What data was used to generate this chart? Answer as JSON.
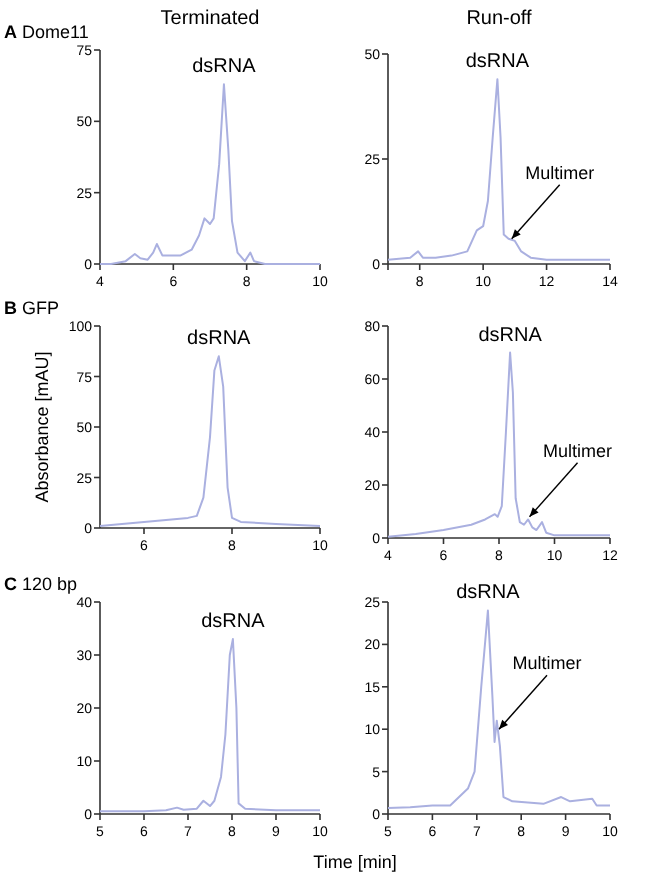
{
  "chart_data": [
    {
      "type": "line",
      "title": "Terminated",
      "subtitle": "A Dome11",
      "xlim": [
        4,
        10
      ],
      "xticks": [
        4,
        6,
        8,
        10
      ],
      "ylim": [
        0,
        75
      ],
      "yticks": [
        0,
        25,
        50,
        75
      ],
      "series": [
        {
          "color": "#aab0e0",
          "x": [
            4,
            4.3,
            4.7,
            4.95,
            5.1,
            5.3,
            5.45,
            5.55,
            5.7,
            5.9,
            6.2,
            6.5,
            6.7,
            6.85,
            7.0,
            7.1,
            7.25,
            7.38,
            7.5,
            7.6,
            7.75,
            7.95,
            8.1,
            8.2,
            8.5,
            9,
            10
          ],
          "values": [
            0,
            0,
            1,
            3.5,
            2,
            1.5,
            4,
            7,
            3,
            3,
            3,
            5,
            10,
            16,
            14,
            16,
            35,
            63,
            40,
            15,
            4,
            1,
            4,
            1,
            0,
            0,
            0
          ]
        }
      ],
      "annotations": [
        {
          "text": "dsRNA",
          "x": 7.38,
          "y": 63
        }
      ]
    },
    {
      "type": "line",
      "title": "Run-off",
      "xlim": [
        7,
        14
      ],
      "xticks": [
        {
          "value": 7,
          "label": null
        },
        8,
        10,
        12,
        14
      ],
      "ylim": [
        0,
        50
      ],
      "yticks": [
        0,
        25,
        50
      ],
      "series": [
        {
          "color": "#aab0e0",
          "x": [
            7,
            7.7,
            7.95,
            8.1,
            8.5,
            9,
            9.5,
            9.8,
            10.0,
            10.15,
            10.3,
            10.45,
            10.55,
            10.65,
            10.8,
            11.0,
            11.2,
            11.5,
            12,
            14
          ],
          "values": [
            1,
            1.5,
            3,
            1.5,
            1.5,
            2,
            3,
            8,
            9,
            15,
            30,
            44,
            30,
            7,
            6,
            5.5,
            3,
            1.5,
            1,
            1
          ]
        }
      ],
      "annotations": [
        {
          "text": "dsRNA",
          "x": 10.45,
          "y": 44
        },
        {
          "text": "Multimer",
          "x": 10.9,
          "y": 6
        }
      ]
    },
    {
      "type": "line",
      "subtitle": "B GFP",
      "ylabel": "Absorbance [mAU]",
      "xlim": [
        5,
        10
      ],
      "xticks": [
        6,
        8,
        10
      ],
      "ylim": [
        0,
        100
      ],
      "yticks": [
        0,
        25,
        50,
        75,
        100
      ],
      "series": [
        {
          "color": "#aab0e0",
          "x": [
            5,
            5.5,
            6,
            6.5,
            7,
            7.2,
            7.35,
            7.5,
            7.6,
            7.7,
            7.8,
            7.9,
            8.0,
            8.2,
            9,
            10
          ],
          "values": [
            1,
            2,
            3,
            4,
            5,
            6,
            15,
            45,
            78,
            85,
            70,
            20,
            5,
            3,
            2,
            1
          ]
        }
      ],
      "annotations": [
        {
          "text": "dsRNA",
          "x": 7.7,
          "y": 85
        }
      ]
    },
    {
      "type": "line",
      "xlim": [
        4,
        12
      ],
      "xticks": [
        4,
        6,
        8,
        10,
        12
      ],
      "ylim": [
        0,
        80
      ],
      "yticks": [
        0,
        20,
        40,
        60,
        80
      ],
      "series": [
        {
          "color": "#aab0e0",
          "x": [
            4,
            5,
            6,
            7,
            7.5,
            7.85,
            7.95,
            8.1,
            8.25,
            8.4,
            8.5,
            8.6,
            8.75,
            8.9,
            9.05,
            9.2,
            9.35,
            9.55,
            9.7,
            10,
            11,
            12
          ],
          "values": [
            0.5,
            1.5,
            3,
            5,
            7,
            9,
            8,
            12,
            40,
            70,
            55,
            15,
            6,
            5,
            7,
            4,
            3,
            6,
            2,
            1,
            1,
            1
          ]
        }
      ],
      "annotations": [
        {
          "text": "dsRNA",
          "x": 8.4,
          "y": 70
        },
        {
          "text": "Multimer",
          "x": 9.1,
          "y": 8
        }
      ]
    },
    {
      "type": "line",
      "subtitle": "C 120 bp",
      "xlabel": "Time [min]",
      "xlim": [
        5,
        10
      ],
      "xticks": [
        5,
        6,
        7,
        8,
        9,
        10
      ],
      "ylim": [
        0,
        40
      ],
      "yticks": [
        0,
        10,
        20,
        30,
        40
      ],
      "series": [
        {
          "color": "#aab0e0",
          "x": [
            5,
            6,
            6.5,
            6.75,
            6.9,
            7.2,
            7.35,
            7.5,
            7.6,
            7.75,
            7.85,
            7.95,
            8.02,
            8.1,
            8.15,
            8.3,
            9,
            10
          ],
          "values": [
            0.5,
            0.5,
            0.7,
            1.2,
            0.8,
            1,
            2.5,
            1.5,
            2.5,
            7,
            15,
            30,
            33,
            20,
            2,
            1,
            0.7,
            0.7
          ]
        }
      ],
      "annotations": [
        {
          "text": "dsRNA",
          "x": 8.02,
          "y": 33
        }
      ]
    },
    {
      "type": "line",
      "xlim": [
        5,
        10
      ],
      "xticks": [
        5,
        6,
        7,
        8,
        9,
        10
      ],
      "ylim": [
        0,
        25
      ],
      "yticks": [
        0,
        5,
        10,
        15,
        20,
        25
      ],
      "series": [
        {
          "color": "#aab0e0",
          "x": [
            5,
            5.5,
            6,
            6.4,
            6.5,
            6.8,
            6.95,
            7.1,
            7.25,
            7.35,
            7.4,
            7.45,
            7.52,
            7.6,
            7.8,
            8.5,
            8.9,
            9.1,
            9.6,
            9.7,
            10
          ],
          "values": [
            0.7,
            0.8,
            1,
            1,
            1.5,
            3,
            5,
            15,
            24,
            14,
            8.5,
            11,
            8,
            2,
            1.5,
            1.2,
            2,
            1.5,
            1.8,
            1,
            1
          ]
        }
      ],
      "annotations": [
        {
          "text": "dsRNA",
          "x": 7.25,
          "y": 24
        },
        {
          "text": "Multimer",
          "x": 7.5,
          "y": 10
        }
      ]
    }
  ]
}
